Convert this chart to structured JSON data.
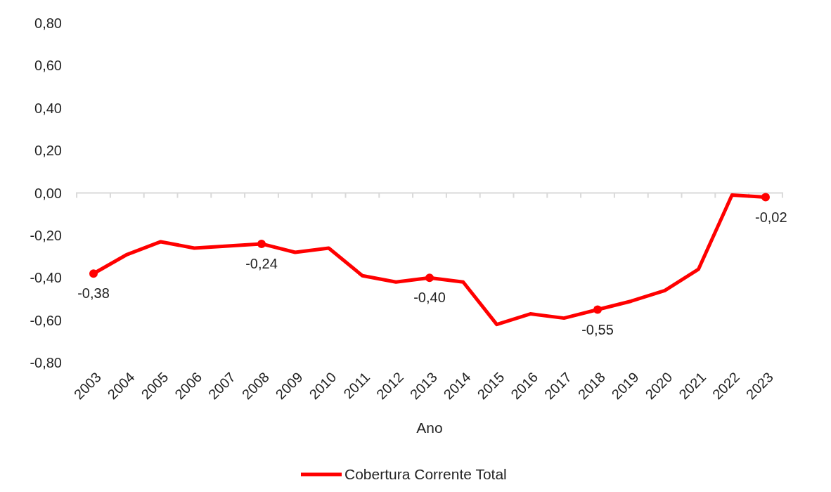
{
  "chart_data": {
    "type": "line",
    "xlabel": "Ano",
    "categories": [
      "2003",
      "2004",
      "2005",
      "2006",
      "2007",
      "2008",
      "2009",
      "2010",
      "2011",
      "2012",
      "2013",
      "2014",
      "2015",
      "2016",
      "2017",
      "2018",
      "2019",
      "2020",
      "2021",
      "2022",
      "2023"
    ],
    "series": [
      {
        "name": "Cobertura Corrente Total",
        "color": "#ff0000",
        "values": [
          -0.38,
          -0.29,
          -0.23,
          -0.26,
          -0.25,
          -0.24,
          -0.28,
          -0.26,
          -0.39,
          -0.42,
          -0.4,
          -0.42,
          -0.62,
          -0.57,
          -0.59,
          -0.55,
          -0.51,
          -0.46,
          -0.36,
          -0.01,
          -0.02
        ],
        "value_labels": [
          "-0,38",
          null,
          null,
          null,
          null,
          "-0,24",
          null,
          null,
          null,
          null,
          "-0,40",
          null,
          null,
          null,
          null,
          "-0,55",
          null,
          null,
          null,
          null,
          "-0,02"
        ]
      }
    ],
    "ylim": [
      -0.8,
      0.8
    ],
    "yticks": [
      {
        "value": -0.8,
        "label": "-0,80"
      },
      {
        "value": -0.6,
        "label": "-0,60"
      },
      {
        "value": -0.4,
        "label": "-0,40"
      },
      {
        "value": -0.2,
        "label": "-0,20"
      },
      {
        "value": 0,
        "label": "0,00"
      },
      {
        "value": 0.2,
        "label": "0,20"
      },
      {
        "value": 0.4,
        "label": "0,40"
      },
      {
        "value": 0.6,
        "label": "0,60"
      },
      {
        "value": 0.8,
        "label": "0,80"
      }
    ],
    "legend": "bottom",
    "line_style": "solid"
  }
}
